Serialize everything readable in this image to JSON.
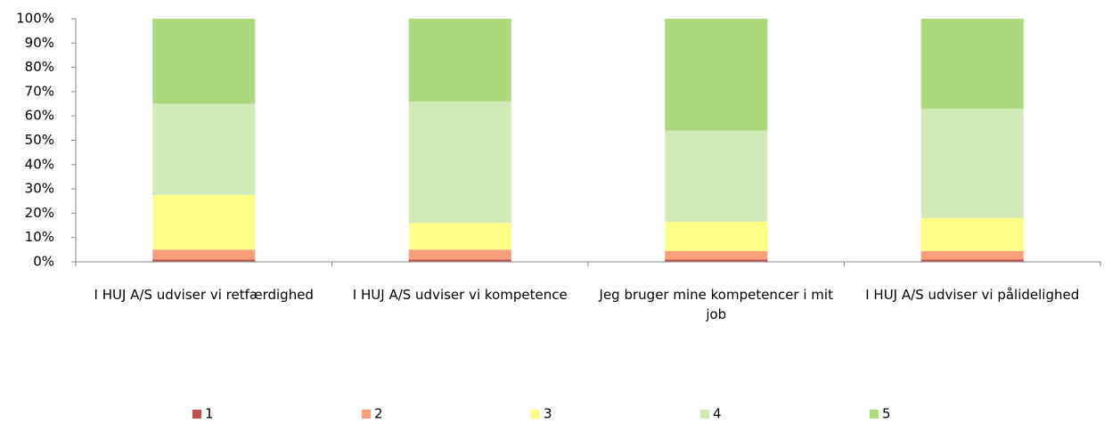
{
  "chart_data": {
    "type": "stacked_bar",
    "categories": [
      "I HUJ A/S udviser vi retfærdighed",
      "I HUJ A/S udviser vi kompetence",
      "Jeg bruger mine kompetencer i mit job",
      "I HUJ A/S udviser vi pålidelighed"
    ],
    "series": [
      {
        "name": "1",
        "color": "#c0504d",
        "values": [
          1,
          1,
          1,
          1
        ]
      },
      {
        "name": "2",
        "color": "#f9a07a",
        "values": [
          4,
          4,
          3.5,
          3.5
        ]
      },
      {
        "name": "3",
        "color": "#ffff88",
        "values": [
          22.5,
          11,
          12,
          13.5
        ]
      },
      {
        "name": "4",
        "color": "#d1eab5",
        "values": [
          37.5,
          50,
          37.5,
          45
        ]
      },
      {
        "name": "5",
        "color": "#acd97b",
        "values": [
          35,
          34,
          46,
          37
        ]
      }
    ],
    "ylim": [
      0,
      100
    ],
    "yticks": [
      {
        "value": 0,
        "label": "0%"
      },
      {
        "value": 10,
        "label": "10%"
      },
      {
        "value": 20,
        "label": "20%"
      },
      {
        "value": 30,
        "label": "30%"
      },
      {
        "value": 40,
        "label": "40%"
      },
      {
        "value": 50,
        "label": "50%"
      },
      {
        "value": 60,
        "label": "60%"
      },
      {
        "value": 70,
        "label": "70%"
      },
      {
        "value": 80,
        "label": "80%"
      },
      {
        "value": 90,
        "label": "90%"
      },
      {
        "value": 100,
        "label": "100%"
      }
    ],
    "grid": false,
    "legend": "bottom"
  }
}
